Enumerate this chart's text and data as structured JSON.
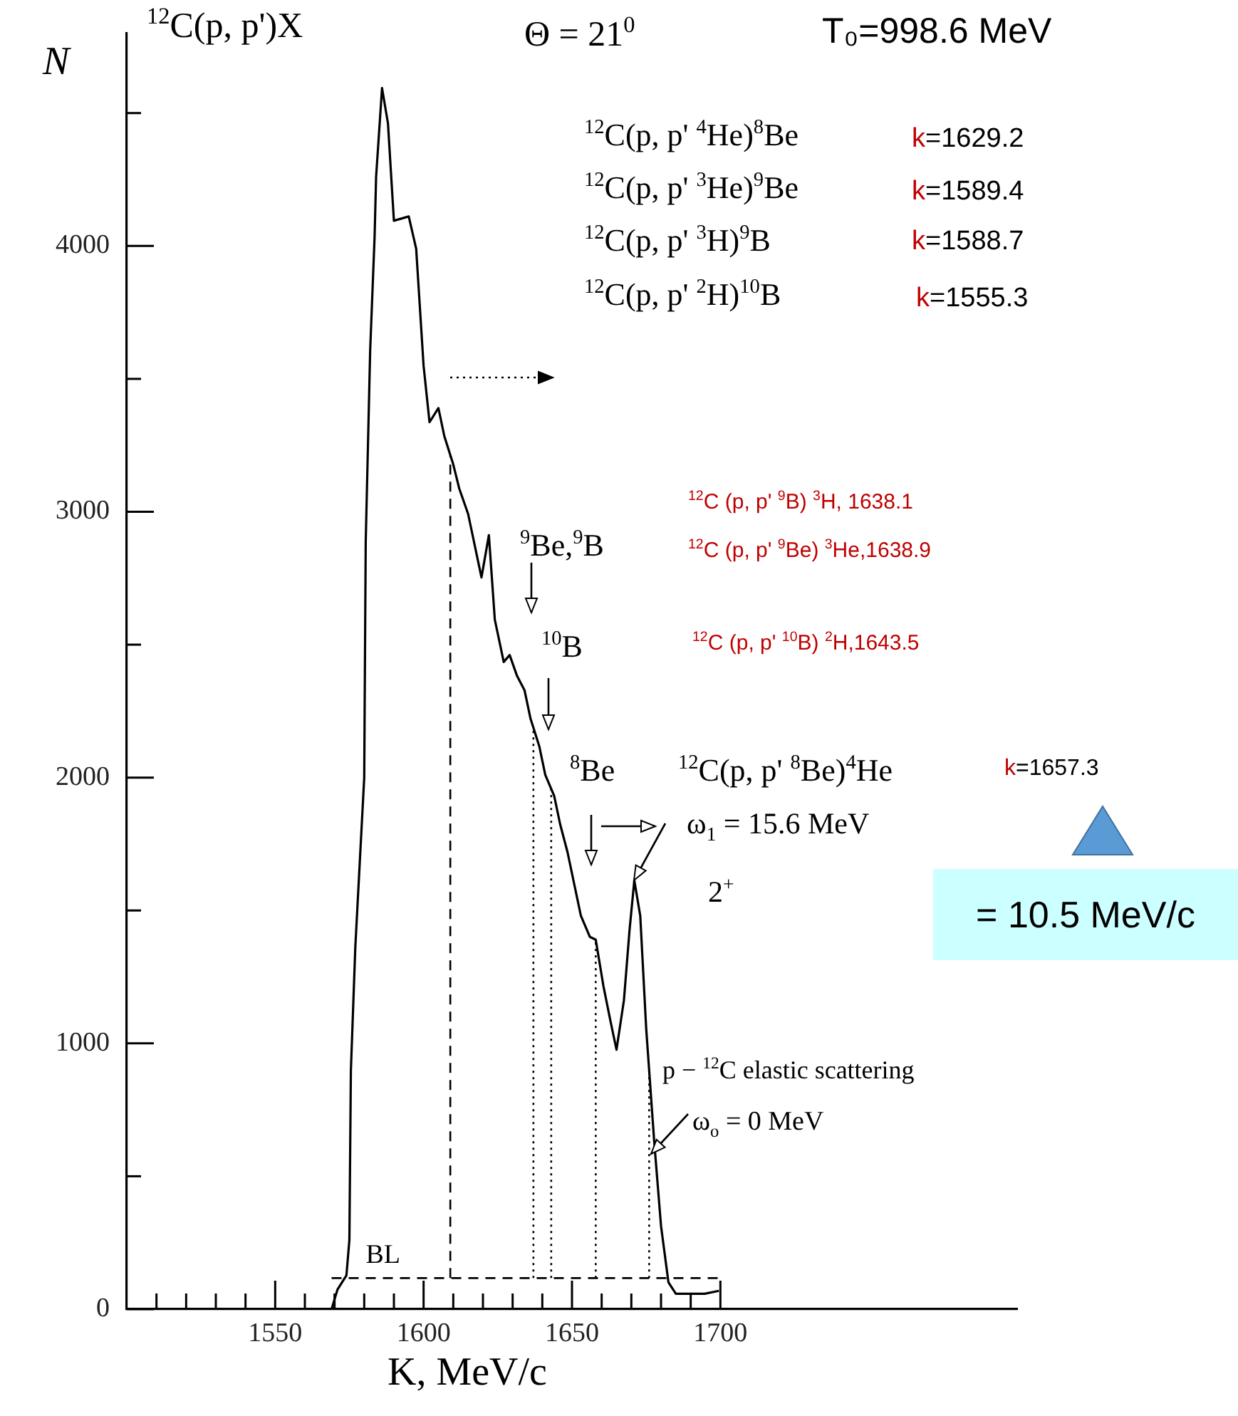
{
  "chart_data": {
    "type": "line",
    "xlabel": "K, MeV/c",
    "ylabel": "N",
    "xlim": [
      1500,
      1800
    ],
    "ylim": [
      0,
      4800
    ],
    "xticks": [
      {
        "value": 1510,
        "label": null
      },
      {
        "value": 1520,
        "label": null
      },
      {
        "value": 1530,
        "label": null
      },
      {
        "value": 1540,
        "label": null
      },
      1550,
      {
        "value": 1560,
        "label": null
      },
      {
        "value": 1570,
        "label": null
      },
      {
        "value": 1580,
        "label": null
      },
      {
        "value": 1590,
        "label": null
      },
      1600,
      {
        "value": 1610,
        "label": null
      },
      {
        "value": 1620,
        "label": null
      },
      {
        "value": 1630,
        "label": null
      },
      {
        "value": 1640,
        "label": null
      },
      1650,
      {
        "value": 1660,
        "label": null
      },
      {
        "value": 1670,
        "label": null
      },
      {
        "value": 1680,
        "label": null
      },
      {
        "value": 1690,
        "label": null
      },
      1700
    ],
    "yticks": [
      0,
      {
        "value": 500,
        "label": null
      },
      1000,
      {
        "value": 1500,
        "label": null
      },
      2000,
      {
        "value": 2500,
        "label": null
      },
      3000,
      {
        "value": 3500,
        "label": null
      },
      4000,
      {
        "value": 4500,
        "label": null
      }
    ],
    "marker": "none",
    "line_style": "solid",
    "legend": false,
    "series": [
      {
        "color": "#000000",
        "x": [
          1569,
          1571,
          1574,
          1575,
          1575.5,
          1577,
          1580,
          1580.5,
          1582,
          1583.5,
          1584,
          1586,
          1588,
          1590,
          1595,
          1597.5,
          1600,
          1602,
          1605,
          1607,
          1610,
          1612,
          1615,
          1617,
          1619.5,
          1622,
          1624,
          1627,
          1629,
          1631.5,
          1634,
          1636,
          1639,
          1641,
          1644,
          1646,
          1648.5,
          1651,
          1653,
          1656,
          1658,
          1660.6,
          1663,
          1665,
          1667.5,
          1669.4,
          1671,
          1673,
          1675,
          1677.7,
          1680,
          1682.5,
          1685,
          1694.7,
          1699.5
        ],
        "values": [
          0,
          74,
          127,
          260,
          897,
          1363,
          2000,
          2886,
          3607,
          4037,
          4260,
          4594,
          4461,
          4095,
          4111,
          3990,
          3549,
          3337,
          3390,
          3284,
          3178,
          3088,
          2992,
          2886,
          2753,
          2912,
          2594,
          2435,
          2461,
          2382,
          2329,
          2223,
          2117,
          2010,
          1931,
          1825,
          1719,
          1586,
          1480,
          1401,
          1390,
          1215,
          1082,
          976,
          1162,
          1427,
          1613,
          1480,
          1056,
          631,
          313,
          101,
          58,
          58,
          69
        ]
      }
    ],
    "ref_lines": [
      {
        "axis": "y",
        "value": 117,
        "label": "BL",
        "line_style": "dashed"
      },
      {
        "axis": "x",
        "value": 1609,
        "line_style": "dashed"
      },
      {
        "axis": "x",
        "value": 1637,
        "line_style": "dotted"
      },
      {
        "axis": "x",
        "value": 1643,
        "line_style": "dotted"
      },
      {
        "axis": "x",
        "value": 1658,
        "line_style": "dotted"
      },
      {
        "axis": "x",
        "value": 1676,
        "line_style": "dotted"
      }
    ],
    "annotations": [
      "$^{12}$C(p, p')X",
      "Θ = 21$^{0}$",
      "T₀=998.6 MeV",
      "$^{12}$C(p, p' $^{4}$He)$^{8}$Be",
      "k=1629.2",
      "$^{12}$C(p, p' $^{3}$He)$^{9}$Be",
      "k=1589.4",
      "$^{12}$C(p, p' $^{3}$H)$^{9}$B",
      "k=1588.7",
      "$^{12}$C(p, p' $^{2}$H)$^{10}$B",
      "k=1555.3",
      "$^{12}$C (p, p' $^{9}$B) $^{3}$H,   1638.1",
      "$^{12}$C (p, p' $^{9}$Be) $^{3}$He,1638.9",
      "$^{12}$C (p, p' $^{10}$B) $^{2}$H,1643.5",
      "$^{9}$Be,$^{9}$B",
      "$^{10}$B",
      "$^{8}$Be",
      "$^{12}$C(p, p' $^{8}$Be)$^{4}$He",
      "k=1657.3",
      "ω$_{1}$ = 15.6 MeV",
      {
        "text": "2$^{+}$",
        "x": 1671,
        "y": 1613
      },
      "p − $^{12}$C elastic scattering",
      {
        "text": "ω$_{o}$ = 0 MeV",
        "x": 1676.7,
        "y": 584
      },
      "= 10.5 MeV/c"
    ]
  }
}
